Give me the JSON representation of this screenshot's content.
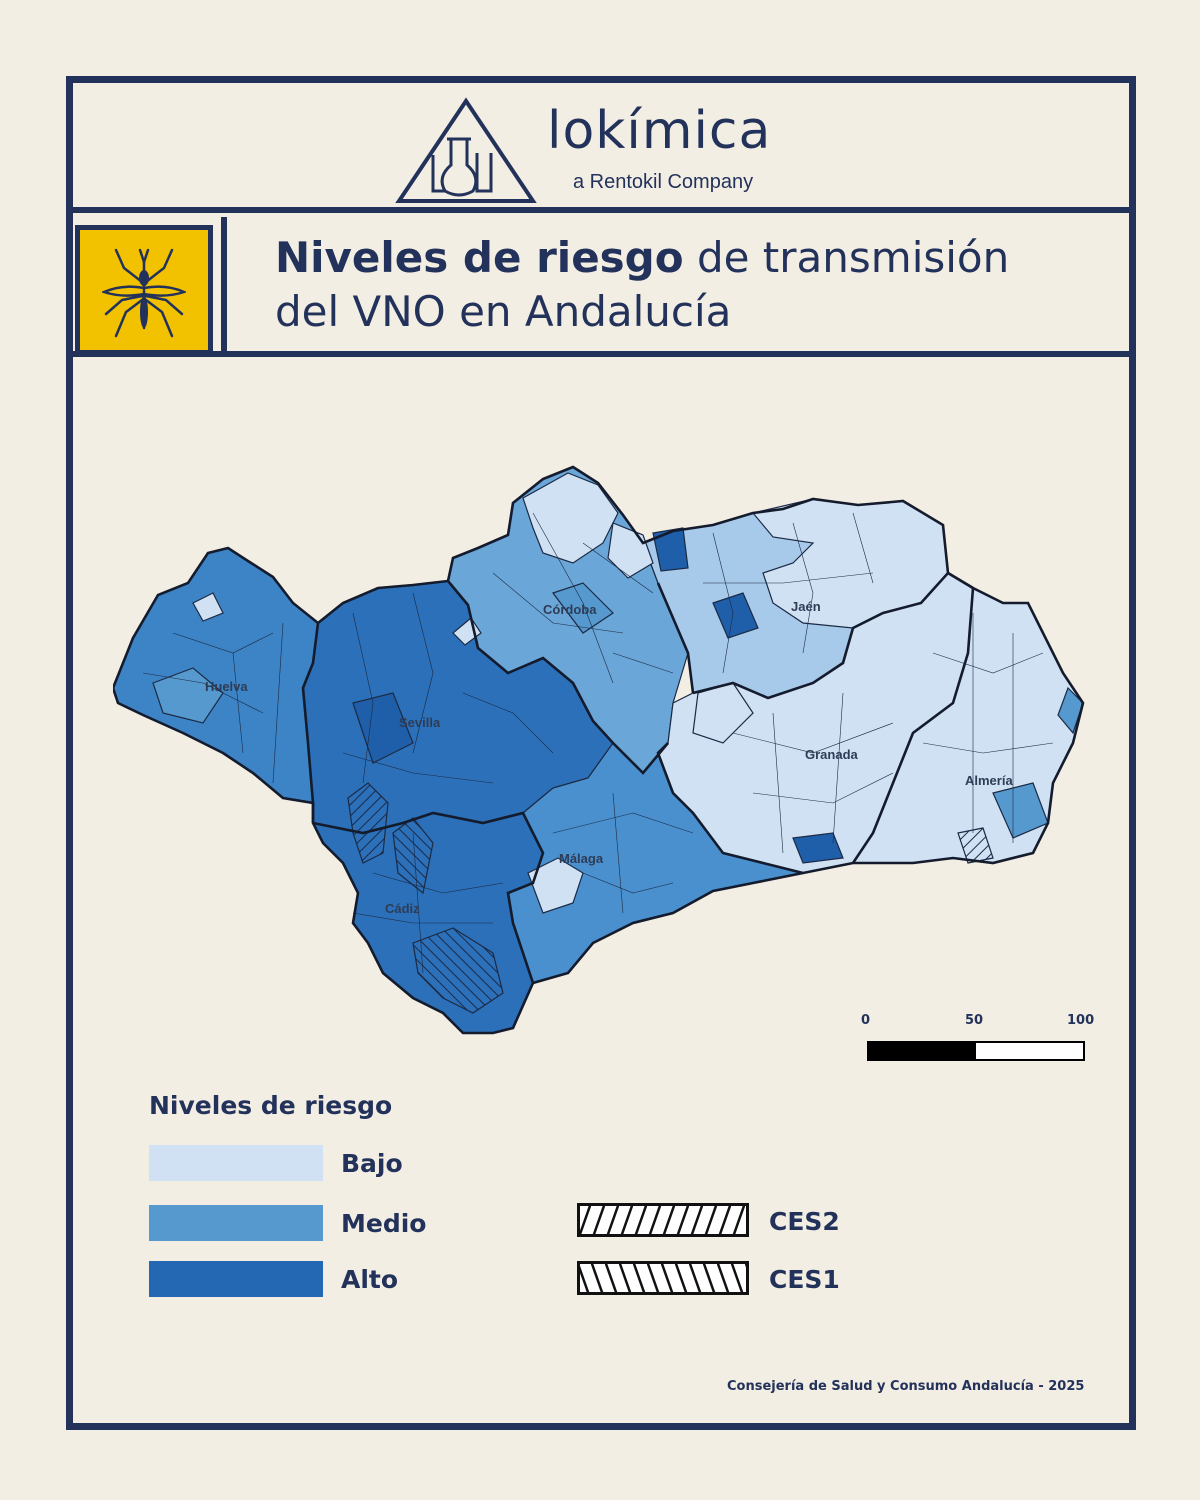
{
  "brand": {
    "name": "lokímica",
    "tagline": "a Rentokil Company",
    "logo_icon": "flask-triangle-logo"
  },
  "title": {
    "bold": "Niveles de riesgo",
    "rest_line1": " de transmisión",
    "line2": "del VNO en Andalucía",
    "icon": "mosquito-icon"
  },
  "map": {
    "provinces": [
      "Huelva",
      "Sevilla",
      "Córdoba",
      "Jaén",
      "Granada",
      "Almería",
      "Málaga",
      "Cádiz"
    ],
    "scale": {
      "ticks": [
        "0",
        "50",
        "100"
      ]
    }
  },
  "legend": {
    "title": "Niveles de riesgo",
    "items": [
      {
        "label": "Bajo",
        "color": "#cfe1f3"
      },
      {
        "label": "Medio",
        "color": "#5599ce"
      },
      {
        "label": "Alto",
        "color": "#2468b4"
      }
    ],
    "hatches": [
      {
        "label": "CES2",
        "pattern": "forward-diagonal"
      },
      {
        "label": "CES1",
        "pattern": "backward-diagonal"
      }
    ]
  },
  "source": "Consejería de Salud y Consumo Andalucía - 2025",
  "colors": {
    "navy": "#23325a",
    "yellow": "#f2c200",
    "background": "#f3eee4"
  }
}
